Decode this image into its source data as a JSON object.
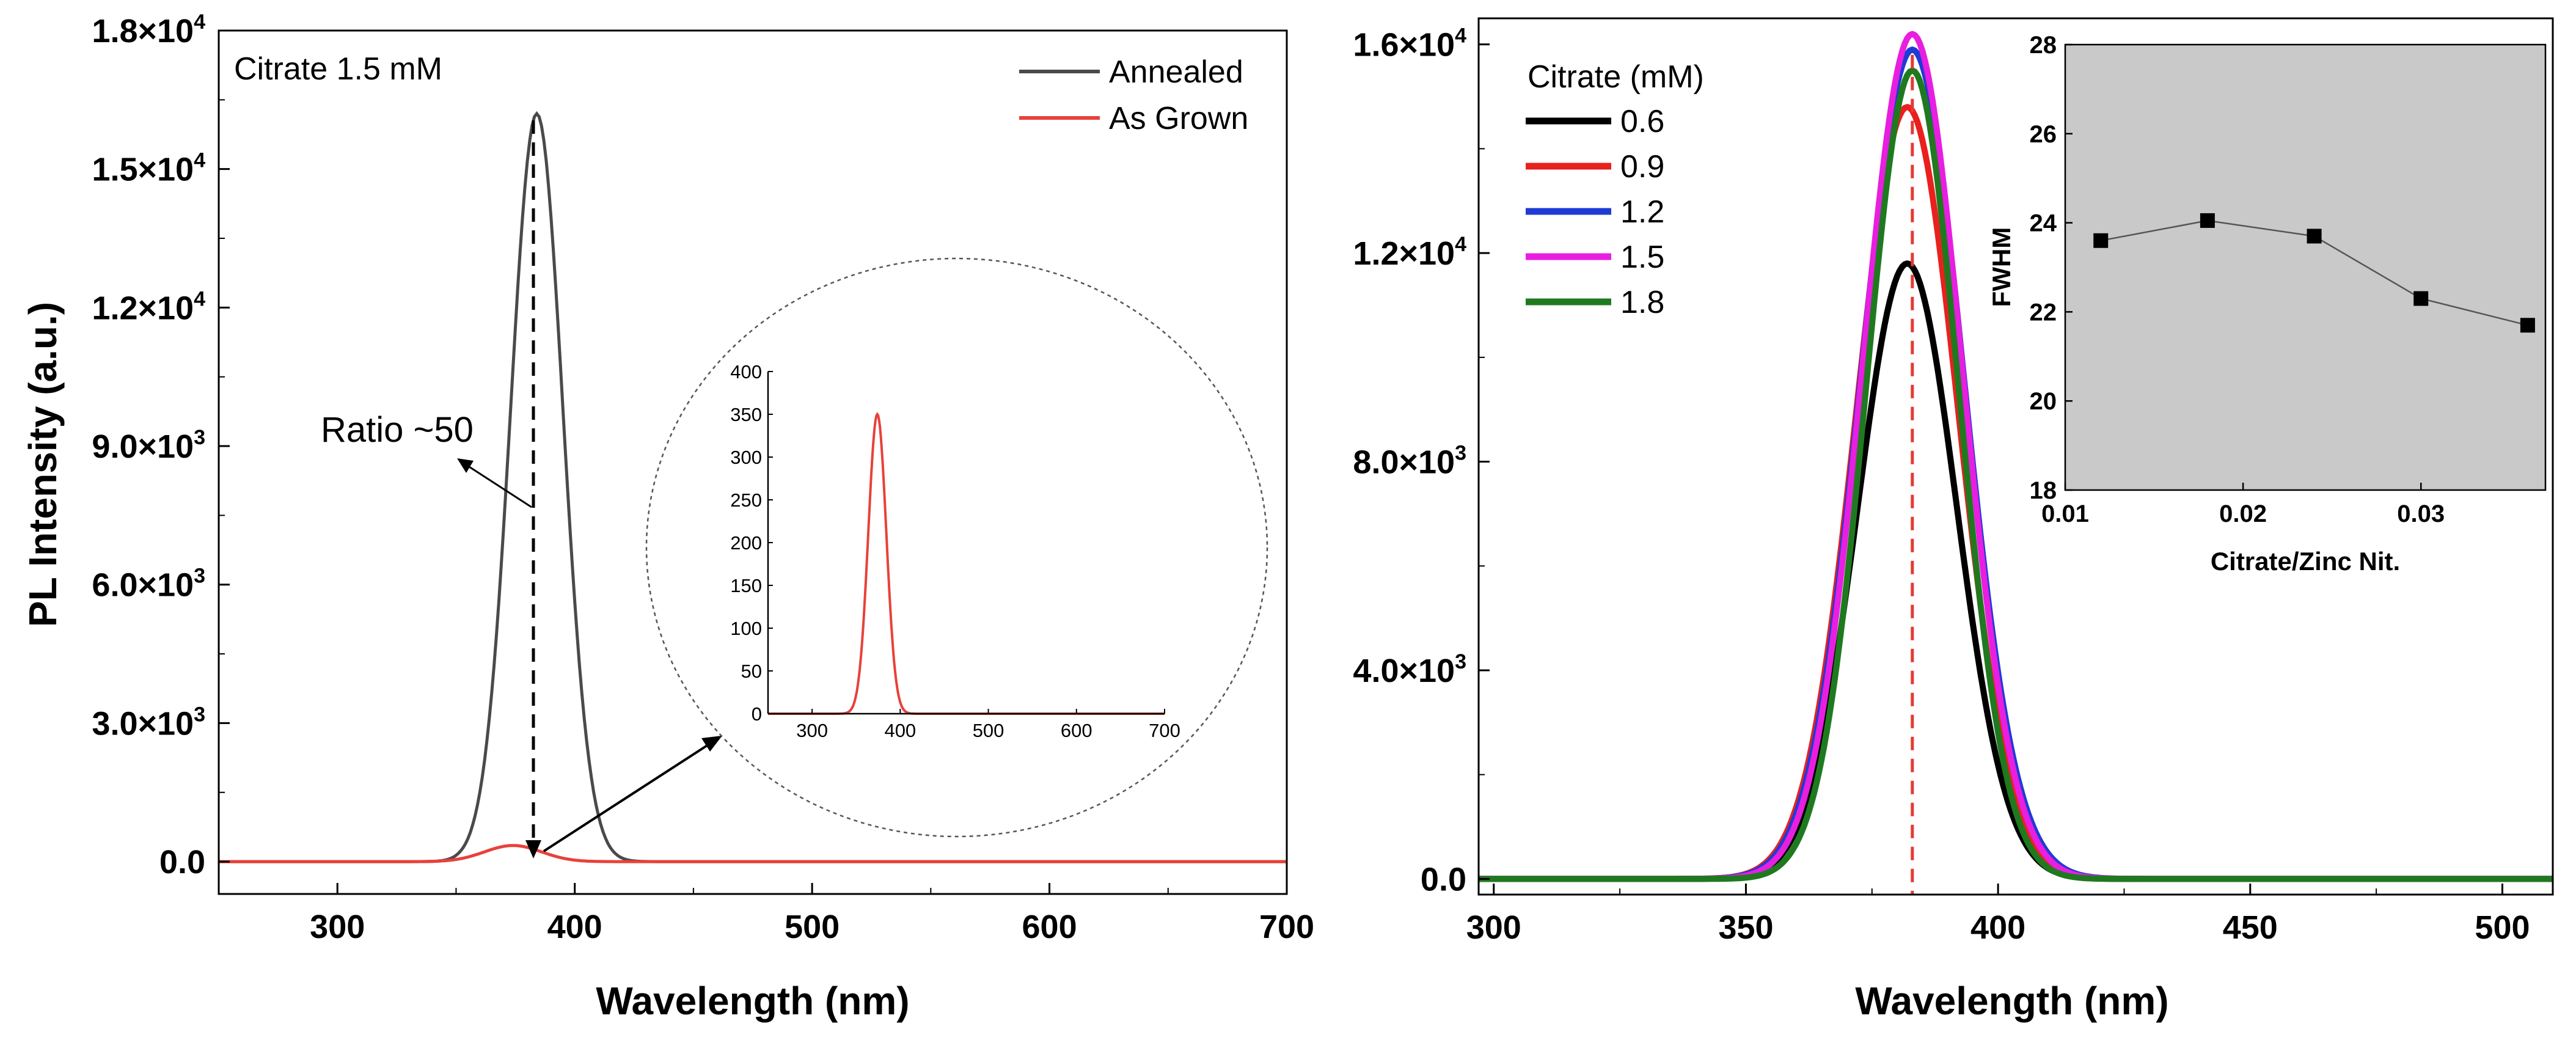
{
  "chart_data": [
    {
      "type": "line",
      "panel": "left",
      "title": "",
      "annotation": "Citrate 1.5 mM",
      "ratio_label": "Ratio ~50",
      "xlabel": "Wavelength (nm)",
      "ylabel": "PL Intensity (a.u.)",
      "xlim": [
        250,
        700
      ],
      "ylim": [
        -700,
        18000
      ],
      "x_ticks": [
        300,
        400,
        500,
        600,
        700
      ],
      "x_tick_labels": [
        "300",
        "400",
        "500",
        "600",
        "700"
      ],
      "y_ticks": [
        0,
        3000,
        6000,
        9000,
        12000,
        15000,
        18000
      ],
      "y_tick_labels": [
        {
          "base": "0.0",
          "exp": ""
        },
        {
          "base": "3.0×10",
          "exp": "3"
        },
        {
          "base": "6.0×10",
          "exp": "3"
        },
        {
          "base": "9.0×10",
          "exp": "3"
        },
        {
          "base": "1.2×10",
          "exp": "4"
        },
        {
          "base": "1.5×10",
          "exp": "4"
        },
        {
          "base": "1.8×10",
          "exp": "4"
        }
      ],
      "series": [
        {
          "name": "Annealed",
          "color": "#4a4a4a",
          "peak_nm": 384,
          "peak": 16200,
          "sigma": 11
        },
        {
          "name": "As Grown",
          "color": "#e8413a",
          "peak_nm": 374,
          "peak": 350,
          "sigma": 12
        }
      ],
      "legend_position": "top-right",
      "inset": {
        "series": "As Grown",
        "color": "#e8413a",
        "xlim": [
          250,
          700
        ],
        "ylim": [
          0,
          400
        ],
        "x_ticks": [
          300,
          400,
          500,
          600,
          700
        ],
        "x_tick_labels": [
          "300",
          "400",
          "500",
          "600",
          "700"
        ],
        "y_ticks": [
          0,
          50,
          100,
          150,
          200,
          250,
          300,
          350,
          400
        ],
        "y_tick_labels": [
          "0",
          "50",
          "100",
          "150",
          "200",
          "250",
          "300",
          "350",
          "400"
        ]
      }
    },
    {
      "type": "line",
      "panel": "right",
      "title": "",
      "xlabel": "Wavelength (nm)",
      "ylabel": "",
      "xlim": [
        297,
        510
      ],
      "ylim": [
        -300,
        16500
      ],
      "x_ticks": [
        300,
        350,
        400,
        450,
        500
      ],
      "x_tick_labels": [
        "300",
        "350",
        "400",
        "450",
        "500"
      ],
      "y_ticks": [
        0,
        4000,
        8000,
        12000,
        16000
      ],
      "y_tick_labels": [
        {
          "base": "0.0",
          "exp": ""
        },
        {
          "base": "4.0×10",
          "exp": "3"
        },
        {
          "base": "8.0×10",
          "exp": "3"
        },
        {
          "base": "1.2×10",
          "exp": "4"
        },
        {
          "base": "1.6×10",
          "exp": "4"
        }
      ],
      "legend_title": "Citrate (mM)",
      "legend_position": "top-left",
      "peak_marker_nm": 383,
      "peak_marker_color": "#e53935",
      "series": [
        {
          "name": "0.6",
          "color": "#000000",
          "peak_nm": 382,
          "peak": 11800,
          "sigma": 9.8
        },
        {
          "name": "0.9",
          "color": "#e8211f",
          "peak_nm": 382,
          "peak": 14800,
          "sigma": 10.1
        },
        {
          "name": "1.2",
          "color": "#1f3bd6",
          "peak_nm": 383,
          "peak": 15900,
          "sigma": 10.2
        },
        {
          "name": "1.5",
          "color": "#e81ee0",
          "peak_nm": 383,
          "peak": 16200,
          "sigma": 9.9
        },
        {
          "name": "1.8",
          "color": "#1f7a1f",
          "peak_nm": 383,
          "peak": 15500,
          "sigma": 9.2
        }
      ],
      "inset": {
        "type": "scatter",
        "xlabel": "Citrate/Zinc Nit.",
        "ylabel": "FWHM",
        "xlim": [
          0.01,
          0.037
        ],
        "ylim": [
          18,
          28
        ],
        "x_ticks": [
          0.01,
          0.02,
          0.03
        ],
        "x_tick_labels": [
          "0.01",
          "0.02",
          "0.03"
        ],
        "y_ticks": [
          18,
          20,
          22,
          24,
          26,
          28
        ],
        "y_tick_labels": [
          "18",
          "20",
          "22",
          "24",
          "26",
          "28"
        ],
        "background": "#c9c9c9",
        "x": [
          0.012,
          0.018,
          0.024,
          0.03,
          0.036
        ],
        "y": [
          23.6,
          24.05,
          23.7,
          22.3,
          21.7
        ]
      }
    }
  ]
}
